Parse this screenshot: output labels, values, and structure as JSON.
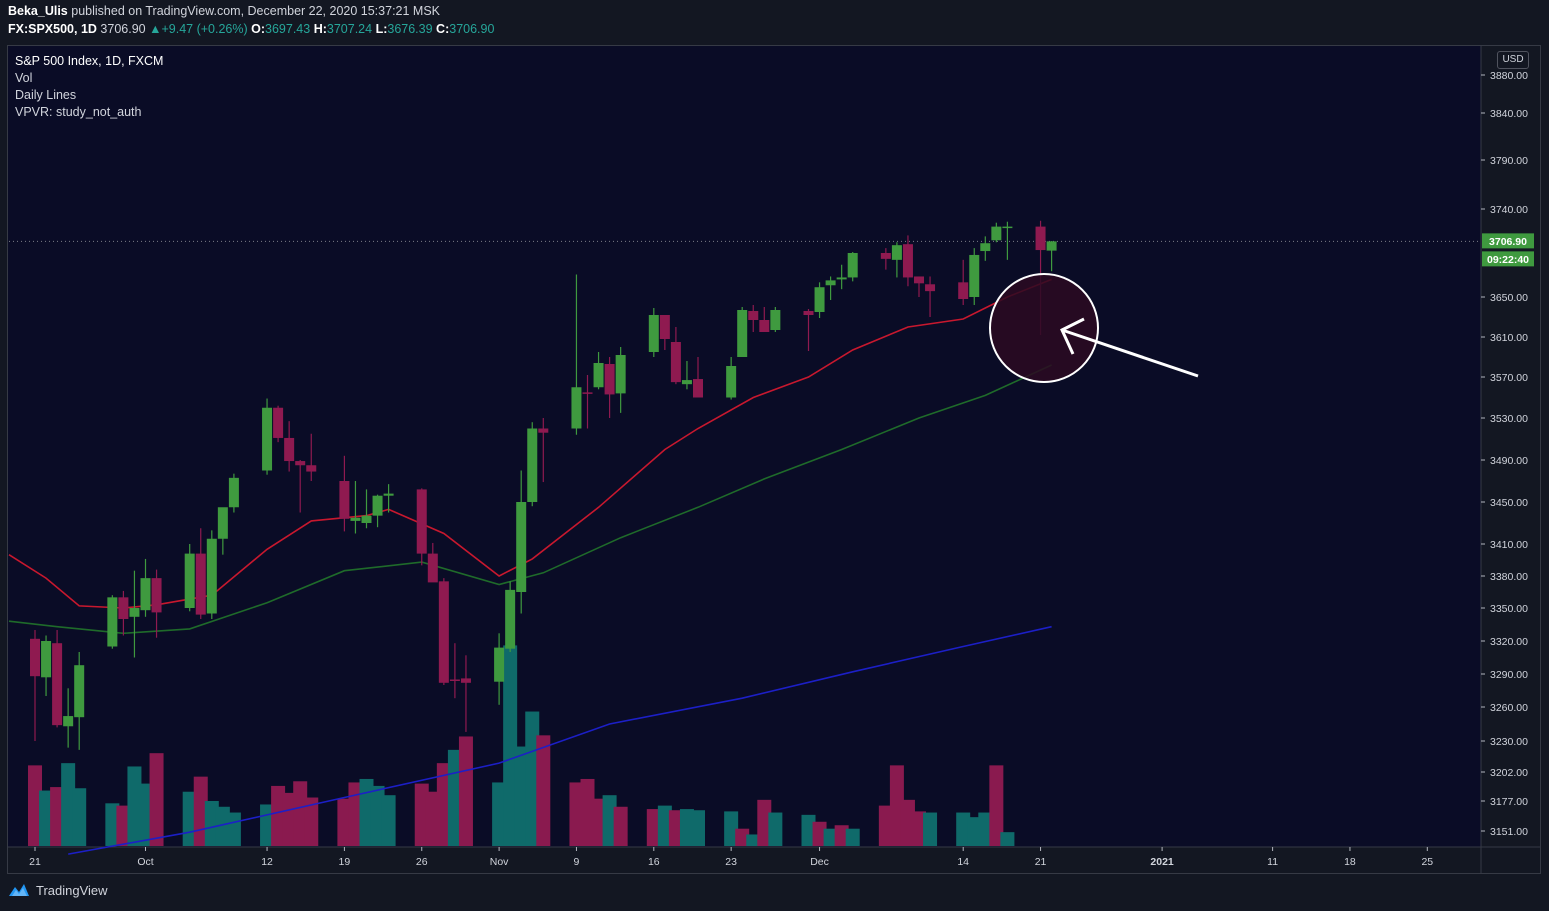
{
  "header": {
    "publisher": "Beka_Ulis",
    "published_text": "published on TradingView.com, December 22, 2020 15:37:21 MSK",
    "symbol": "FX:SPX500, 1D",
    "last": "3706.90",
    "change": "+9.47 (+0.26%)",
    "o_label": "O:",
    "o_value": "3697.43",
    "h_label": "H:",
    "h_value": "3707.24",
    "l_label": "L:",
    "l_value": "3676.39",
    "c_label": "C:",
    "c_value": "3706.90"
  },
  "legend": {
    "title": "S&P 500 Index, 1D, FXCM",
    "vol": "Vol",
    "daily_lines": "Daily Lines",
    "vpvr": "VPVR: study_not_auth"
  },
  "currency": "USD",
  "price_tag": "3706.90",
  "countdown_tag": "09:22:40",
  "footer_brand": "TradingView",
  "colors": {
    "background": "#0a0c26",
    "up": "#3f9a3f",
    "down": "#8f1a50",
    "vol_up": "#0f6a6a",
    "vol_down": "#8a1a4f",
    "ma_fast": "#c8182e",
    "ma_mid": "#1f6b2a",
    "ma_slow": "#1c1fc7",
    "price_tag": "#3f9a3f"
  },
  "chart_data": {
    "type": "candlestick",
    "x_ticks": [
      "21",
      "Oct",
      "12",
      "19",
      "26",
      "Nov",
      "9",
      "16",
      "23",
      "Dec",
      "14",
      "21",
      "2021",
      "11",
      "18",
      "25"
    ],
    "y_ticks": [
      3880,
      3840,
      3790,
      3740,
      3650,
      3610,
      3570,
      3530,
      3490,
      3450,
      3410,
      3380,
      3350,
      3320,
      3290,
      3260,
      3230,
      3202,
      3177,
      3151
    ],
    "candles": [
      {
        "d": "2020-09-17",
        "o": 3380,
        "h": 3390,
        "l": 3300,
        "c": 3349
      },
      {
        "d": "2020-09-18",
        "o": 3355,
        "h": 3362,
        "l": 3285,
        "c": 3287
      },
      {
        "d": "2020-09-21",
        "o": 3322,
        "h": 3330,
        "l": 3230,
        "c": 3288
      },
      {
        "d": "2020-09-22",
        "o": 3287,
        "h": 3325,
        "l": 3270,
        "c": 3320
      },
      {
        "d": "2020-09-23",
        "o": 3318,
        "h": 3330,
        "l": 3242,
        "c": 3244
      },
      {
        "d": "2020-09-24",
        "o": 3243,
        "h": 3277,
        "l": 3224,
        "c": 3252
      },
      {
        "d": "2020-09-25",
        "o": 3251,
        "h": 3310,
        "l": 3222,
        "c": 3298
      },
      {
        "d": "2020-09-28",
        "o": 3315,
        "h": 3362,
        "l": 3313,
        "c": 3360
      },
      {
        "d": "2020-09-29",
        "o": 3360,
        "h": 3366,
        "l": 3325,
        "c": 3340
      },
      {
        "d": "2020-09-30",
        "o": 3342,
        "h": 3385,
        "l": 3305,
        "c": 3350
      },
      {
        "d": "2020-10-01",
        "o": 3348,
        "h": 3396,
        "l": 3342,
        "c": 3378
      },
      {
        "d": "2020-10-02",
        "o": 3378,
        "h": 3386,
        "l": 3323,
        "c": 3346
      },
      {
        "d": "2020-10-05",
        "o": 3350,
        "h": 3410,
        "l": 3347,
        "c": 3401
      },
      {
        "d": "2020-10-06",
        "o": 3401,
        "h": 3425,
        "l": 3340,
        "c": 3344
      },
      {
        "d": "2020-10-07",
        "o": 3345,
        "h": 3423,
        "l": 3340,
        "c": 3415
      },
      {
        "d": "2020-10-08",
        "o": 3415,
        "h": 3440,
        "l": 3400,
        "c": 3445
      },
      {
        "d": "2020-10-09",
        "o": 3445,
        "h": 3477,
        "l": 3440,
        "c": 3473
      },
      {
        "d": "2020-10-12",
        "o": 3480,
        "h": 3549,
        "l": 3476,
        "c": 3540
      },
      {
        "d": "2020-10-13",
        "o": 3540,
        "h": 3542,
        "l": 3507,
        "c": 3511
      },
      {
        "d": "2020-10-14",
        "o": 3511,
        "h": 3527,
        "l": 3479,
        "c": 3489
      },
      {
        "d": "2020-10-15",
        "o": 3489,
        "h": 3490,
        "l": 3440,
        "c": 3485
      },
      {
        "d": "2020-10-16",
        "o": 3485,
        "h": 3515,
        "l": 3470,
        "c": 3479
      },
      {
        "d": "2020-10-19",
        "o": 3470,
        "h": 3494,
        "l": 3422,
        "c": 3434
      },
      {
        "d": "2020-10-20",
        "o": 3432,
        "h": 3470,
        "l": 3420,
        "c": 3435
      },
      {
        "d": "2020-10-21",
        "o": 3430,
        "h": 3462,
        "l": 3425,
        "c": 3437
      },
      {
        "d": "2020-10-22",
        "o": 3437,
        "h": 3457,
        "l": 3426,
        "c": 3456
      },
      {
        "d": "2020-10-23",
        "o": 3456,
        "h": 3467,
        "l": 3440,
        "c": 3458
      },
      {
        "d": "2020-10-26",
        "o": 3462,
        "h": 3463,
        "l": 3390,
        "c": 3401
      },
      {
        "d": "2020-10-27",
        "o": 3401,
        "h": 3411,
        "l": 3378,
        "c": 3374
      },
      {
        "d": "2020-10-28",
        "o": 3375,
        "h": 3378,
        "l": 3280,
        "c": 3282
      },
      {
        "d": "2020-10-29",
        "o": 3285,
        "h": 3318,
        "l": 3268,
        "c": 3284
      },
      {
        "d": "2020-10-30",
        "o": 3286,
        "h": 3307,
        "l": 3238,
        "c": 3282
      },
      {
        "d": "2020-11-02",
        "o": 3283,
        "h": 3327,
        "l": 3262,
        "c": 3314
      },
      {
        "d": "2020-11-03",
        "o": 3313,
        "h": 3375,
        "l": 3310,
        "c": 3367
      },
      {
        "d": "2020-11-04",
        "o": 3365,
        "h": 3480,
        "l": 3345,
        "c": 3450
      },
      {
        "d": "2020-11-05",
        "o": 3450,
        "h": 3526,
        "l": 3446,
        "c": 3520
      },
      {
        "d": "2020-11-06",
        "o": 3520,
        "h": 3530,
        "l": 3469,
        "c": 3516
      },
      {
        "d": "2020-11-09",
        "o": 3520,
        "h": 3673,
        "l": 3514,
        "c": 3560
      },
      {
        "d": "2020-11-10",
        "o": 3555,
        "h": 3572,
        "l": 3520,
        "c": 3554
      },
      {
        "d": "2020-11-11",
        "o": 3560,
        "h": 3595,
        "l": 3558,
        "c": 3584
      },
      {
        "d": "2020-11-12",
        "o": 3583,
        "h": 3590,
        "l": 3530,
        "c": 3553
      },
      {
        "d": "2020-11-13",
        "o": 3554,
        "h": 3600,
        "l": 3535,
        "c": 3592
      },
      {
        "d": "2020-11-16",
        "o": 3595,
        "h": 3639,
        "l": 3590,
        "c": 3632
      },
      {
        "d": "2020-11-17",
        "o": 3632,
        "h": 3632,
        "l": 3597,
        "c": 3608
      },
      {
        "d": "2020-11-18",
        "o": 3605,
        "h": 3620,
        "l": 3563,
        "c": 3565
      },
      {
        "d": "2020-11-19",
        "o": 3563,
        "h": 3586,
        "l": 3558,
        "c": 3567
      },
      {
        "d": "2020-11-20",
        "o": 3568,
        "h": 3590,
        "l": 3550,
        "c": 3550
      },
      {
        "d": "2020-11-23",
        "o": 3550,
        "h": 3590,
        "l": 3548,
        "c": 3581
      },
      {
        "d": "2020-11-24",
        "o": 3590,
        "h": 3640,
        "l": 3590,
        "c": 3637
      },
      {
        "d": "2020-11-25",
        "o": 3636,
        "h": 3642,
        "l": 3615,
        "c": 3627
      },
      {
        "d": "2020-11-26",
        "o": 3627,
        "h": 3640,
        "l": 3618,
        "c": 3615
      },
      {
        "d": "2020-11-27",
        "o": 3617,
        "h": 3640,
        "l": 3615,
        "c": 3637
      },
      {
        "d": "2020-11-30",
        "o": 3636,
        "h": 3638,
        "l": 3596,
        "c": 3632
      },
      {
        "d": "2020-12-01",
        "o": 3635,
        "h": 3665,
        "l": 3629,
        "c": 3660
      },
      {
        "d": "2020-12-02",
        "o": 3662,
        "h": 3671,
        "l": 3647,
        "c": 3667
      },
      {
        "d": "2020-12-03",
        "o": 3668,
        "h": 3683,
        "l": 3658,
        "c": 3670
      },
      {
        "d": "2020-12-04",
        "o": 3670,
        "h": 3696,
        "l": 3666,
        "c": 3695
      },
      {
        "d": "2020-12-07",
        "o": 3695,
        "h": 3700,
        "l": 3678,
        "c": 3689
      },
      {
        "d": "2020-12-08",
        "o": 3688,
        "h": 3706,
        "l": 3670,
        "c": 3703
      },
      {
        "d": "2020-12-09",
        "o": 3704,
        "h": 3713,
        "l": 3661,
        "c": 3670
      },
      {
        "d": "2020-12-10",
        "o": 3671,
        "h": 3671,
        "l": 3650,
        "c": 3664
      },
      {
        "d": "2020-12-11",
        "o": 3663,
        "h": 3671,
        "l": 3630,
        "c": 3656
      },
      {
        "d": "2020-12-14",
        "o": 3665,
        "h": 3688,
        "l": 3642,
        "c": 3648
      },
      {
        "d": "2020-12-15",
        "o": 3650,
        "h": 3700,
        "l": 3642,
        "c": 3693
      },
      {
        "d": "2020-12-16",
        "o": 3697,
        "h": 3712,
        "l": 3687,
        "c": 3705
      },
      {
        "d": "2020-12-17",
        "o": 3708,
        "h": 3726,
        "l": 3706,
        "c": 3722
      },
      {
        "d": "2020-12-18",
        "o": 3722,
        "h": 3727,
        "l": 3688,
        "c": 3722
      },
      {
        "d": "2020-12-21",
        "o": 3722,
        "h": 3728,
        "l": 3612,
        "c": 3698
      },
      {
        "d": "2020-12-22",
        "o": 3697.43,
        "h": 3707.24,
        "l": 3676.39,
        "c": 3706.9
      }
    ],
    "volumes": [
      {
        "d": "2020-09-17",
        "v": 3255,
        "dir": "down"
      },
      {
        "d": "2020-09-18",
        "v": 3192,
        "dir": "down"
      },
      {
        "d": "2020-09-21",
        "v": 3208,
        "dir": "down"
      },
      {
        "d": "2020-09-22",
        "v": 3186,
        "dir": "up"
      },
      {
        "d": "2020-09-23",
        "v": 3189,
        "dir": "down"
      },
      {
        "d": "2020-09-24",
        "v": 3210,
        "dir": "up"
      },
      {
        "d": "2020-09-25",
        "v": 3188,
        "dir": "up"
      },
      {
        "d": "2020-09-28",
        "v": 3175,
        "dir": "up"
      },
      {
        "d": "2020-09-29",
        "v": 3173,
        "dir": "down"
      },
      {
        "d": "2020-09-30",
        "v": 3207,
        "dir": "up"
      },
      {
        "d": "2020-10-01",
        "v": 3192,
        "dir": "up"
      },
      {
        "d": "2020-10-02",
        "v": 3219,
        "dir": "down"
      },
      {
        "d": "2020-10-05",
        "v": 3185,
        "dir": "up"
      },
      {
        "d": "2020-10-06",
        "v": 3198,
        "dir": "down"
      },
      {
        "d": "2020-10-07",
        "v": 3177,
        "dir": "up"
      },
      {
        "d": "2020-10-08",
        "v": 3172,
        "dir": "up"
      },
      {
        "d": "2020-10-09",
        "v": 3167,
        "dir": "up"
      },
      {
        "d": "2020-10-12",
        "v": 3174,
        "dir": "up"
      },
      {
        "d": "2020-10-13",
        "v": 3190,
        "dir": "down"
      },
      {
        "d": "2020-10-14",
        "v": 3184,
        "dir": "down"
      },
      {
        "d": "2020-10-15",
        "v": 3194,
        "dir": "down"
      },
      {
        "d": "2020-10-16",
        "v": 3180,
        "dir": "down"
      },
      {
        "d": "2020-10-19",
        "v": 3179,
        "dir": "down"
      },
      {
        "d": "2020-10-20",
        "v": 3193,
        "dir": "down"
      },
      {
        "d": "2020-10-21",
        "v": 3196,
        "dir": "up"
      },
      {
        "d": "2020-10-22",
        "v": 3190,
        "dir": "up"
      },
      {
        "d": "2020-10-23",
        "v": 3182,
        "dir": "up"
      },
      {
        "d": "2020-10-26",
        "v": 3192,
        "dir": "down"
      },
      {
        "d": "2020-10-27",
        "v": 3185,
        "dir": "down"
      },
      {
        "d": "2020-10-28",
        "v": 3210,
        "dir": "down"
      },
      {
        "d": "2020-10-29",
        "v": 3222,
        "dir": "up"
      },
      {
        "d": "2020-10-30",
        "v": 3234,
        "dir": "down"
      },
      {
        "d": "2020-11-02",
        "v": 3193,
        "dir": "up"
      },
      {
        "d": "2020-11-03",
        "v": 3316,
        "dir": "up"
      },
      {
        "d": "2020-11-04",
        "v": 3225,
        "dir": "up"
      },
      {
        "d": "2020-11-05",
        "v": 3256,
        "dir": "up"
      },
      {
        "d": "2020-11-06",
        "v": 3235,
        "dir": "down"
      },
      {
        "d": "2020-11-09",
        "v": 3193,
        "dir": "down"
      },
      {
        "d": "2020-11-10",
        "v": 3196,
        "dir": "down"
      },
      {
        "d": "2020-11-11",
        "v": 3179,
        "dir": "down"
      },
      {
        "d": "2020-11-12",
        "v": 3182,
        "dir": "up"
      },
      {
        "d": "2020-11-13",
        "v": 3172,
        "dir": "down"
      },
      {
        "d": "2020-11-16",
        "v": 3170,
        "dir": "down"
      },
      {
        "d": "2020-11-17",
        "v": 3173,
        "dir": "up"
      },
      {
        "d": "2020-11-18",
        "v": 3169,
        "dir": "down"
      },
      {
        "d": "2020-11-19",
        "v": 3170,
        "dir": "up"
      },
      {
        "d": "2020-11-20",
        "v": 3169,
        "dir": "up"
      },
      {
        "d": "2020-11-23",
        "v": 3168,
        "dir": "up"
      },
      {
        "d": "2020-11-24",
        "v": 3153,
        "dir": "down"
      },
      {
        "d": "2020-11-25",
        "v": 3148,
        "dir": "up"
      },
      {
        "d": "2020-11-26",
        "v": 3178,
        "dir": "down"
      },
      {
        "d": "2020-11-27",
        "v": 3167,
        "dir": "up"
      },
      {
        "d": "2020-11-30",
        "v": 3165,
        "dir": "up"
      },
      {
        "d": "2020-12-01",
        "v": 3159,
        "dir": "down"
      },
      {
        "d": "2020-12-02",
        "v": 3153,
        "dir": "up"
      },
      {
        "d": "2020-12-03",
        "v": 3156,
        "dir": "down"
      },
      {
        "d": "2020-12-04",
        "v": 3153,
        "dir": "up"
      },
      {
        "d": "2020-12-07",
        "v": 3173,
        "dir": "down"
      },
      {
        "d": "2020-12-08",
        "v": 3208,
        "dir": "down"
      },
      {
        "d": "2020-12-09",
        "v": 3178,
        "dir": "down"
      },
      {
        "d": "2020-12-10",
        "v": 3168,
        "dir": "down"
      },
      {
        "d": "2020-12-11",
        "v": 3167,
        "dir": "up"
      },
      {
        "d": "2020-12-14",
        "v": 3167,
        "dir": "up"
      },
      {
        "d": "2020-12-15",
        "v": 3163,
        "dir": "up"
      },
      {
        "d": "2020-12-16",
        "v": 3167,
        "dir": "up"
      },
      {
        "d": "2020-12-17",
        "v": 3208,
        "dir": "down"
      },
      {
        "d": "2020-12-18",
        "v": 3150,
        "dir": "up"
      }
    ],
    "ma_fast": [
      {
        "d": "2020-09-17",
        "y": 3400
      },
      {
        "d": "2020-09-22",
        "y": 3378
      },
      {
        "d": "2020-09-25",
        "y": 3352
      },
      {
        "d": "2020-09-29",
        "y": 3350
      },
      {
        "d": "2020-10-02",
        "y": 3353
      },
      {
        "d": "2020-10-07",
        "y": 3362
      },
      {
        "d": "2020-10-12",
        "y": 3405
      },
      {
        "d": "2020-10-16",
        "y": 3432
      },
      {
        "d": "2020-10-21",
        "y": 3437
      },
      {
        "d": "2020-10-23",
        "y": 3443
      },
      {
        "d": "2020-10-28",
        "y": 3420
      },
      {
        "d": "2020-11-02",
        "y": 3380
      },
      {
        "d": "2020-11-05",
        "y": 3396
      },
      {
        "d": "2020-11-11",
        "y": 3445
      },
      {
        "d": "2020-11-17",
        "y": 3500
      },
      {
        "d": "2020-11-20",
        "y": 3520
      },
      {
        "d": "2020-11-25",
        "y": 3550
      },
      {
        "d": "2020-11-30",
        "y": 3570
      },
      {
        "d": "2020-12-04",
        "y": 3597
      },
      {
        "d": "2020-12-09",
        "y": 3620
      },
      {
        "d": "2020-12-14",
        "y": 3628
      },
      {
        "d": "2020-12-18",
        "y": 3650
      },
      {
        "d": "2020-12-22",
        "y": 3668
      }
    ],
    "ma_mid": [
      {
        "d": "2020-09-17",
        "y": 3338
      },
      {
        "d": "2020-09-23",
        "y": 3333
      },
      {
        "d": "2020-09-29",
        "y": 3327
      },
      {
        "d": "2020-10-05",
        "y": 3331
      },
      {
        "d": "2020-10-12",
        "y": 3355
      },
      {
        "d": "2020-10-19",
        "y": 3385
      },
      {
        "d": "2020-10-26",
        "y": 3393
      },
      {
        "d": "2020-11-02",
        "y": 3372
      },
      {
        "d": "2020-11-06",
        "y": 3383
      },
      {
        "d": "2020-11-13",
        "y": 3416
      },
      {
        "d": "2020-11-20",
        "y": 3445
      },
      {
        "d": "2020-11-26",
        "y": 3472
      },
      {
        "d": "2020-12-03",
        "y": 3500
      },
      {
        "d": "2020-12-10",
        "y": 3530
      },
      {
        "d": "2020-12-16",
        "y": 3552
      },
      {
        "d": "2020-12-22",
        "y": 3582
      }
    ],
    "ma_slow": [
      {
        "d": "2020-09-24",
        "y": 3131
      },
      {
        "d": "2020-10-05",
        "y": 3150
      },
      {
        "d": "2020-10-19",
        "y": 3180
      },
      {
        "d": "2020-11-02",
        "y": 3210
      },
      {
        "d": "2020-11-12",
        "y": 3245
      },
      {
        "d": "2020-11-24",
        "y": 3268
      },
      {
        "d": "2020-12-04",
        "y": 3292
      },
      {
        "d": "2020-12-14",
        "y": 3315
      },
      {
        "d": "2020-12-22",
        "y": 3333
      }
    ],
    "last_price": 3706.9
  }
}
